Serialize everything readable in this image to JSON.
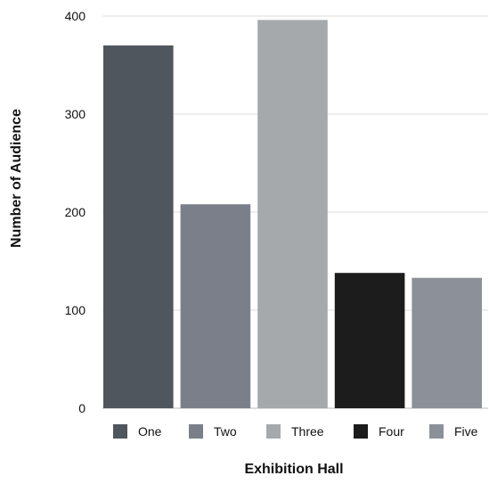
{
  "chart_data": {
    "type": "bar",
    "categories": [
      "One",
      "Two",
      "Three",
      "Four",
      "Five"
    ],
    "values": [
      370,
      208,
      396,
      138,
      133
    ],
    "colors": [
      "#50565e",
      "#7a7f89",
      "#a6a9ac",
      "#1c1c1c",
      "#8c9099"
    ],
    "xlabel": "Exhibition Hall",
    "ylabel": "Number of Audience",
    "ylim": [
      0,
      400
    ],
    "yticks": [
      "0",
      "100",
      "200",
      "300",
      "400"
    ],
    "grid": true,
    "grid_color": "#dddddd",
    "legend_position": "bottom"
  }
}
